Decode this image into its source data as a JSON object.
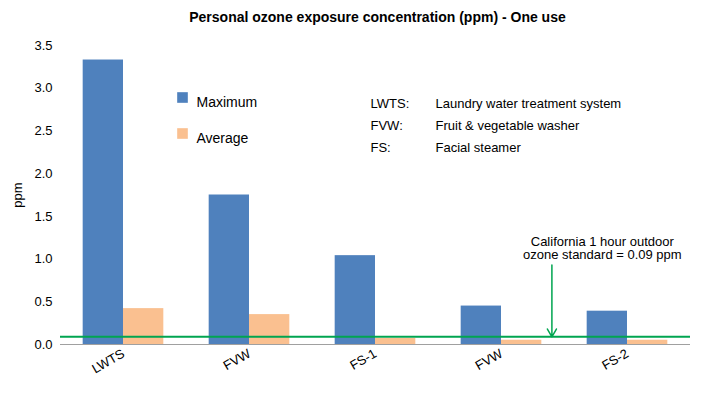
{
  "chart_data": {
    "type": "bar",
    "title": "Personal ozone exposure concentration (ppm) - One use",
    "y_label": "ppm",
    "categories": [
      "LWTS",
      "FVW",
      "FS-1",
      "FVW",
      "FS-2"
    ],
    "series": [
      {
        "name": "Maximum",
        "color": "#4F81BD",
        "values": [
          3.33,
          1.75,
          1.04,
          0.45,
          0.39
        ]
      },
      {
        "name": "Average",
        "color": "#FAC090",
        "values": [
          0.42,
          0.35,
          0.07,
          0.05,
          0.05
        ]
      }
    ],
    "ylim": [
      0,
      3.5
    ],
    "yticks": [
      {
        "value": 0,
        "label": "0.0"
      },
      0.5,
      {
        "value": 1,
        "label": "1.0"
      },
      1.5,
      {
        "value": 2,
        "label": "2.0"
      },
      2.5,
      {
        "value": 3,
        "label": "3.0"
      },
      3.5
    ],
    "grid": false,
    "legend": "upper left",
    "annotations": [
      {
        "label": "LWTS:",
        "text": "Laundry water treatment system"
      },
      {
        "label": "FVW:",
        "text": "Fruit & vegetable washer"
      },
      {
        "label": "FS:",
        "text": "Facial steamer"
      }
    ],
    "reference_line": {
      "value": 0.09,
      "color": "#00A550",
      "label": [
        "California 1 hour outdoor",
        "ozone standard = 0.09 ppm"
      ]
    }
  }
}
